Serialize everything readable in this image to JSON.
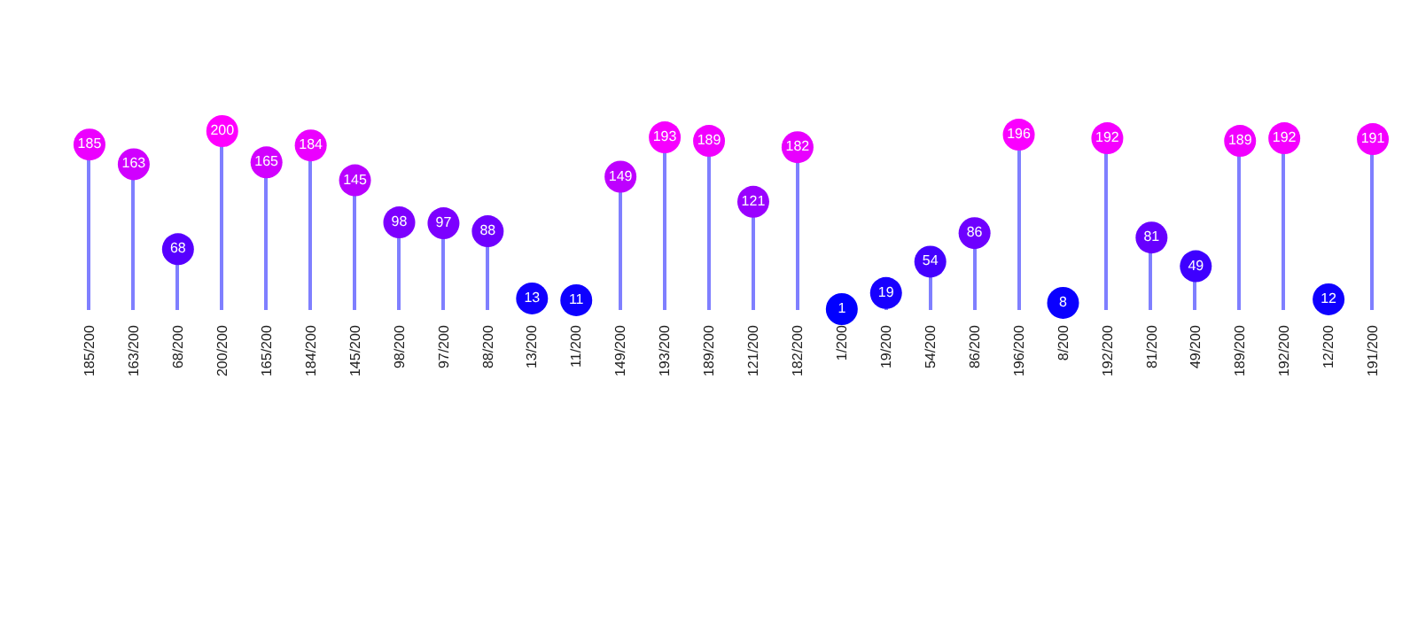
{
  "chart_data": {
    "type": "lollipop",
    "categories": [
      "185/200",
      "163/200",
      "68/200",
      "200/200",
      "165/200",
      "184/200",
      "145/200",
      "98/200",
      "97/200",
      "88/200",
      "13/200",
      "11/200",
      "149/200",
      "193/200",
      "189/200",
      "121/200",
      "182/200",
      "1/200",
      "19/200",
      "54/200",
      "86/200",
      "196/200",
      "8/200",
      "192/200",
      "81/200",
      "49/200",
      "189/200",
      "192/200",
      "12/200",
      "191/200"
    ],
    "values": [
      185,
      163,
      68,
      200,
      165,
      184,
      145,
      98,
      97,
      88,
      13,
      11,
      149,
      193,
      189,
      121,
      182,
      1,
      19,
      54,
      86,
      196,
      8,
      192,
      81,
      49,
      189,
      192,
      12,
      191
    ],
    "colors": [
      "#ec00ff",
      "#d000ff",
      "#5700ff",
      "#ff00ff",
      "#d200ff",
      "#eb00ff",
      "#b900ff",
      "#7d00ff",
      "#7c00ff",
      "#7000ff",
      "#1100ff",
      "#0e00ff",
      "#be00ff",
      "#f600ff",
      "#f100ff",
      "#9a00ff",
      "#e800ff",
      "#0100ff",
      "#1800ff",
      "#4500ff",
      "#6e00ff",
      "#fa00ff",
      "#0a00ff",
      "#f500ff",
      "#6700ff",
      "#3e00ff",
      "#f100ff",
      "#f500ff",
      "#0f00ff",
      "#f400ff"
    ],
    "color": "#7f7fff",
    "data_labels": true
  }
}
